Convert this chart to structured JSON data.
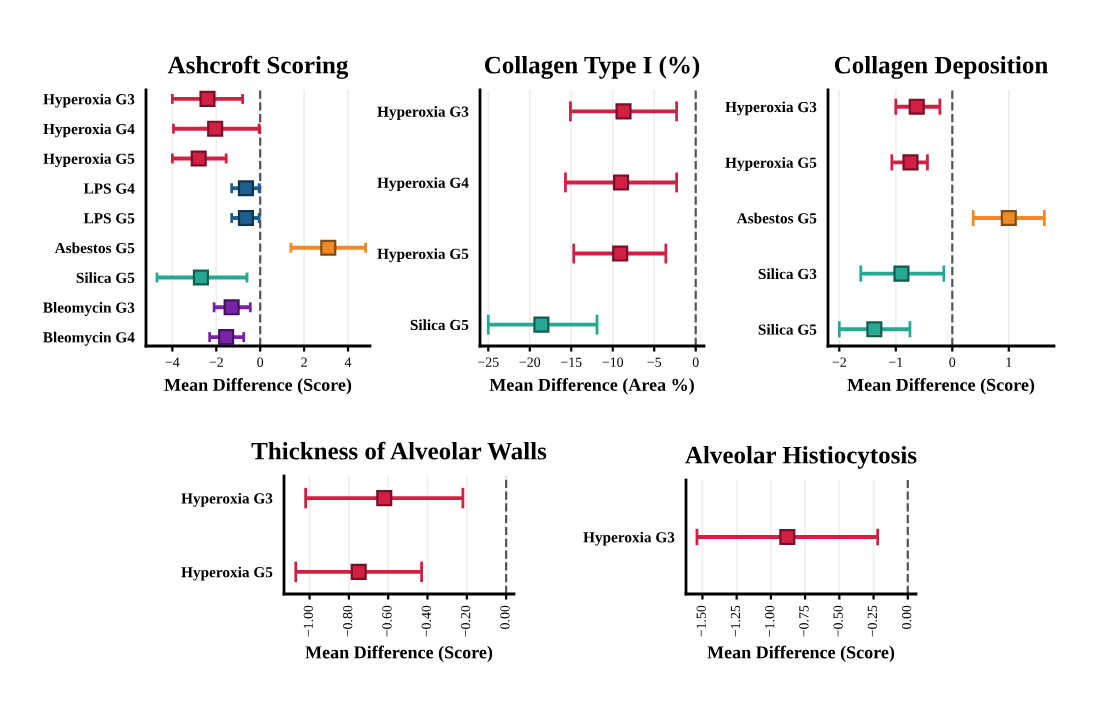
{
  "chart_data": [
    {
      "type": "scatter",
      "orientation": "horizontal",
      "title": "Ashcroft Scoring",
      "xlabel": "Mean Difference (Score)",
      "categories": [
        "Hyperoxia G3",
        "Hyperoxia G4",
        "Hyperoxia G5",
        "LPS G4",
        "LPS G5",
        "Asbestos G5",
        "Silica G5",
        "Bleomycin G3",
        "Bleomycin G4"
      ],
      "values": [
        -2.4,
        -2.05,
        -2.8,
        -0.65,
        -0.65,
        3.1,
        -2.7,
        -1.3,
        -1.55
      ],
      "errors": [
        [
          -4.0,
          -0.8
        ],
        [
          -3.95,
          -0.05
        ],
        [
          -4.0,
          -1.55
        ],
        [
          -1.3,
          -0.05
        ],
        [
          -1.3,
          -0.05
        ],
        [
          1.4,
          4.8
        ],
        [
          -4.7,
          -0.6
        ],
        [
          -2.1,
          -0.45
        ],
        [
          -2.3,
          -0.75
        ]
      ],
      "colors": [
        "#d41f45",
        "#d41f45",
        "#d41f45",
        "#1d5f8f",
        "#1d5f8f",
        "#f08a24",
        "#26a892",
        "#7a22a8",
        "#7a22a8"
      ],
      "xlim": [
        -5.2,
        5
      ],
      "xticks": [
        {
          "value": -4,
          "label": "−4"
        },
        {
          "value": -2,
          "label": "−2"
        },
        0,
        2,
        4
      ],
      "ref_lines": [
        {
          "axis": "x",
          "value": 0,
          "line_style": "dashed",
          "color": "#555555"
        }
      ],
      "grid": "x",
      "marker": "square"
    },
    {
      "type": "scatter",
      "orientation": "horizontal",
      "title": "Collagen Type I (%)",
      "xlabel": "Mean Difference (Area %)",
      "categories": [
        "Hyperoxia G3",
        "Hyperoxia G4",
        "Hyperoxia G5",
        "Silica G5"
      ],
      "values": [
        -8.7,
        -9.0,
        -9.1,
        -18.6
      ],
      "errors": [
        [
          -15.1,
          -2.3
        ],
        [
          -15.7,
          -2.3
        ],
        [
          -14.7,
          -3.6
        ],
        [
          -25,
          -11.9
        ]
      ],
      "colors": [
        "#d41f45",
        "#d41f45",
        "#d41f45",
        "#26a892"
      ],
      "xlim": [
        -26,
        1
      ],
      "xticks": [
        {
          "value": -25,
          "label": "−25"
        },
        {
          "value": -20,
          "label": "−20"
        },
        {
          "value": -15,
          "label": "−15"
        },
        {
          "value": -10,
          "label": "−10"
        },
        {
          "value": -5,
          "label": "−5"
        },
        0
      ],
      "ref_lines": [
        {
          "axis": "x",
          "value": 0,
          "line_style": "dashed",
          "color": "#555555"
        }
      ],
      "grid": "x",
      "marker": "square"
    },
    {
      "type": "scatter",
      "orientation": "horizontal",
      "title": "Collagen Deposition",
      "xlabel": "Mean Difference (Score)",
      "categories": [
        "Hyperoxia G3",
        "Hyperoxia G5",
        "Asbestos G5",
        "Silica G3",
        "Silica G5"
      ],
      "values": [
        -0.63,
        -0.74,
        1.0,
        -0.9,
        -1.38
      ],
      "errors": [
        [
          -1.0,
          -0.22
        ],
        [
          -1.07,
          -0.44
        ],
        [
          0.37,
          1.63
        ],
        [
          -1.62,
          -0.15
        ],
        [
          -2.0,
          -0.75
        ]
      ],
      "colors": [
        "#d41f45",
        "#d41f45",
        "#f08a24",
        "#26a892",
        "#26a892"
      ],
      "xlim": [
        -2.2,
        1.8
      ],
      "xticks": [
        {
          "value": -2,
          "label": "−2"
        },
        {
          "value": -1,
          "label": "−1"
        },
        0,
        1
      ],
      "ref_lines": [
        {
          "axis": "x",
          "value": 0,
          "line_style": "dashed",
          "color": "#555555"
        }
      ],
      "grid": "x",
      "marker": "square"
    },
    {
      "type": "scatter",
      "orientation": "horizontal",
      "title": "Thickness of Alveolar Walls",
      "xlabel": "Mean Difference (Score)",
      "categories": [
        "Hyperoxia G3",
        "Hyperoxia G5"
      ],
      "values": [
        -0.62,
        -0.75
      ],
      "errors": [
        [
          -1.02,
          -0.22
        ],
        [
          -1.07,
          -0.43
        ]
      ],
      "colors": [
        "#d41f45",
        "#d41f45"
      ],
      "xlim": [
        -1.13,
        0.04
      ],
      "xticks": [
        {
          "value": -1.0,
          "label": "−1.00"
        },
        {
          "value": -0.8,
          "label": "−0.80"
        },
        {
          "value": -0.6,
          "label": "−0.60"
        },
        {
          "value": -0.4,
          "label": "−0.40"
        },
        {
          "value": -0.2,
          "label": "−0.20"
        },
        {
          "value": 0,
          "label": "0.00"
        }
      ],
      "ref_lines": [
        {
          "axis": "x",
          "value": 0,
          "line_style": "dashed",
          "color": "#555555"
        }
      ],
      "grid": "x",
      "marker": "square"
    },
    {
      "type": "scatter",
      "orientation": "horizontal",
      "title": "Alveolar Histiocytosis",
      "xlabel": "Mean Difference (Score)",
      "categories": [
        "Hyperoxia G3"
      ],
      "values": [
        -0.88
      ],
      "errors": [
        [
          -1.54,
          -0.22
        ]
      ],
      "colors": [
        "#d41f45"
      ],
      "xlim": [
        -1.62,
        0.06
      ],
      "xticks": [
        {
          "value": -1.5,
          "label": "−1.50"
        },
        {
          "value": -1.25,
          "label": "−1.25"
        },
        {
          "value": -1.0,
          "label": "−1.00"
        },
        {
          "value": -0.75,
          "label": "−0.75"
        },
        {
          "value": -0.5,
          "label": "−0.50"
        },
        {
          "value": -0.25,
          "label": "−0.25"
        },
        {
          "value": 0,
          "label": "0.00"
        }
      ],
      "ref_lines": [
        {
          "axis": "x",
          "value": 0,
          "line_style": "dashed",
          "color": "#555555"
        }
      ],
      "grid": "x",
      "marker": "square"
    }
  ]
}
